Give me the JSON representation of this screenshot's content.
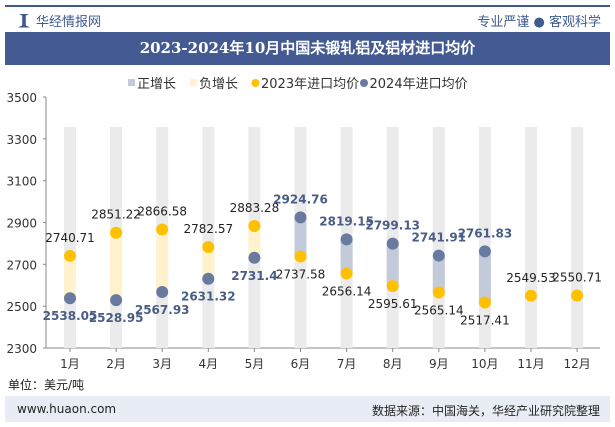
{
  "header": {
    "brand": "华经情报网",
    "slogan": "专业严谨 ● 客观科学"
  },
  "chart_data": {
    "type": "dumbbell",
    "title": "2023-2024年10月中国未锻轧铝及铝材进口均价",
    "categories": [
      "1月",
      "2月",
      "3月",
      "4月",
      "5月",
      "6月",
      "7月",
      "8月",
      "9月",
      "10月",
      "11月",
      "12月"
    ],
    "series": [
      {
        "name": "2023年进口均价",
        "color": "#ffc000",
        "values": [
          2740.71,
          2851.22,
          2866.58,
          2782.57,
          2883.28,
          2737.58,
          2656.14,
          2595.61,
          2565.14,
          2517.41,
          2549.53,
          2550.71
        ]
      },
      {
        "name": "2024年进口均价",
        "color": "#687aa0",
        "values": [
          2538.05,
          2528.95,
          2567.93,
          2631.32,
          2731.4,
          2924.76,
          2819.15,
          2799.13,
          2741.91,
          2761.83,
          null,
          null
        ]
      }
    ],
    "legend": [
      {
        "name": "正增长",
        "color": "#c3cad9"
      },
      {
        "name": "负增长",
        "color": "#fff2cc"
      },
      {
        "name": "2023年进口均价",
        "color": "#ffc000"
      },
      {
        "name": "2024年进口均价",
        "color": "#687aa0"
      }
    ],
    "legend_position": "top",
    "yticks": [
      2300,
      2500,
      2700,
      2900,
      3100,
      3300,
      3500
    ],
    "ylim": [
      2300,
      3500
    ],
    "ylabel": "单位：美元/吨"
  },
  "footer": {
    "website": "www.huaon.com",
    "source": "数据来源：中国海关，华经产业研究院整理"
  }
}
